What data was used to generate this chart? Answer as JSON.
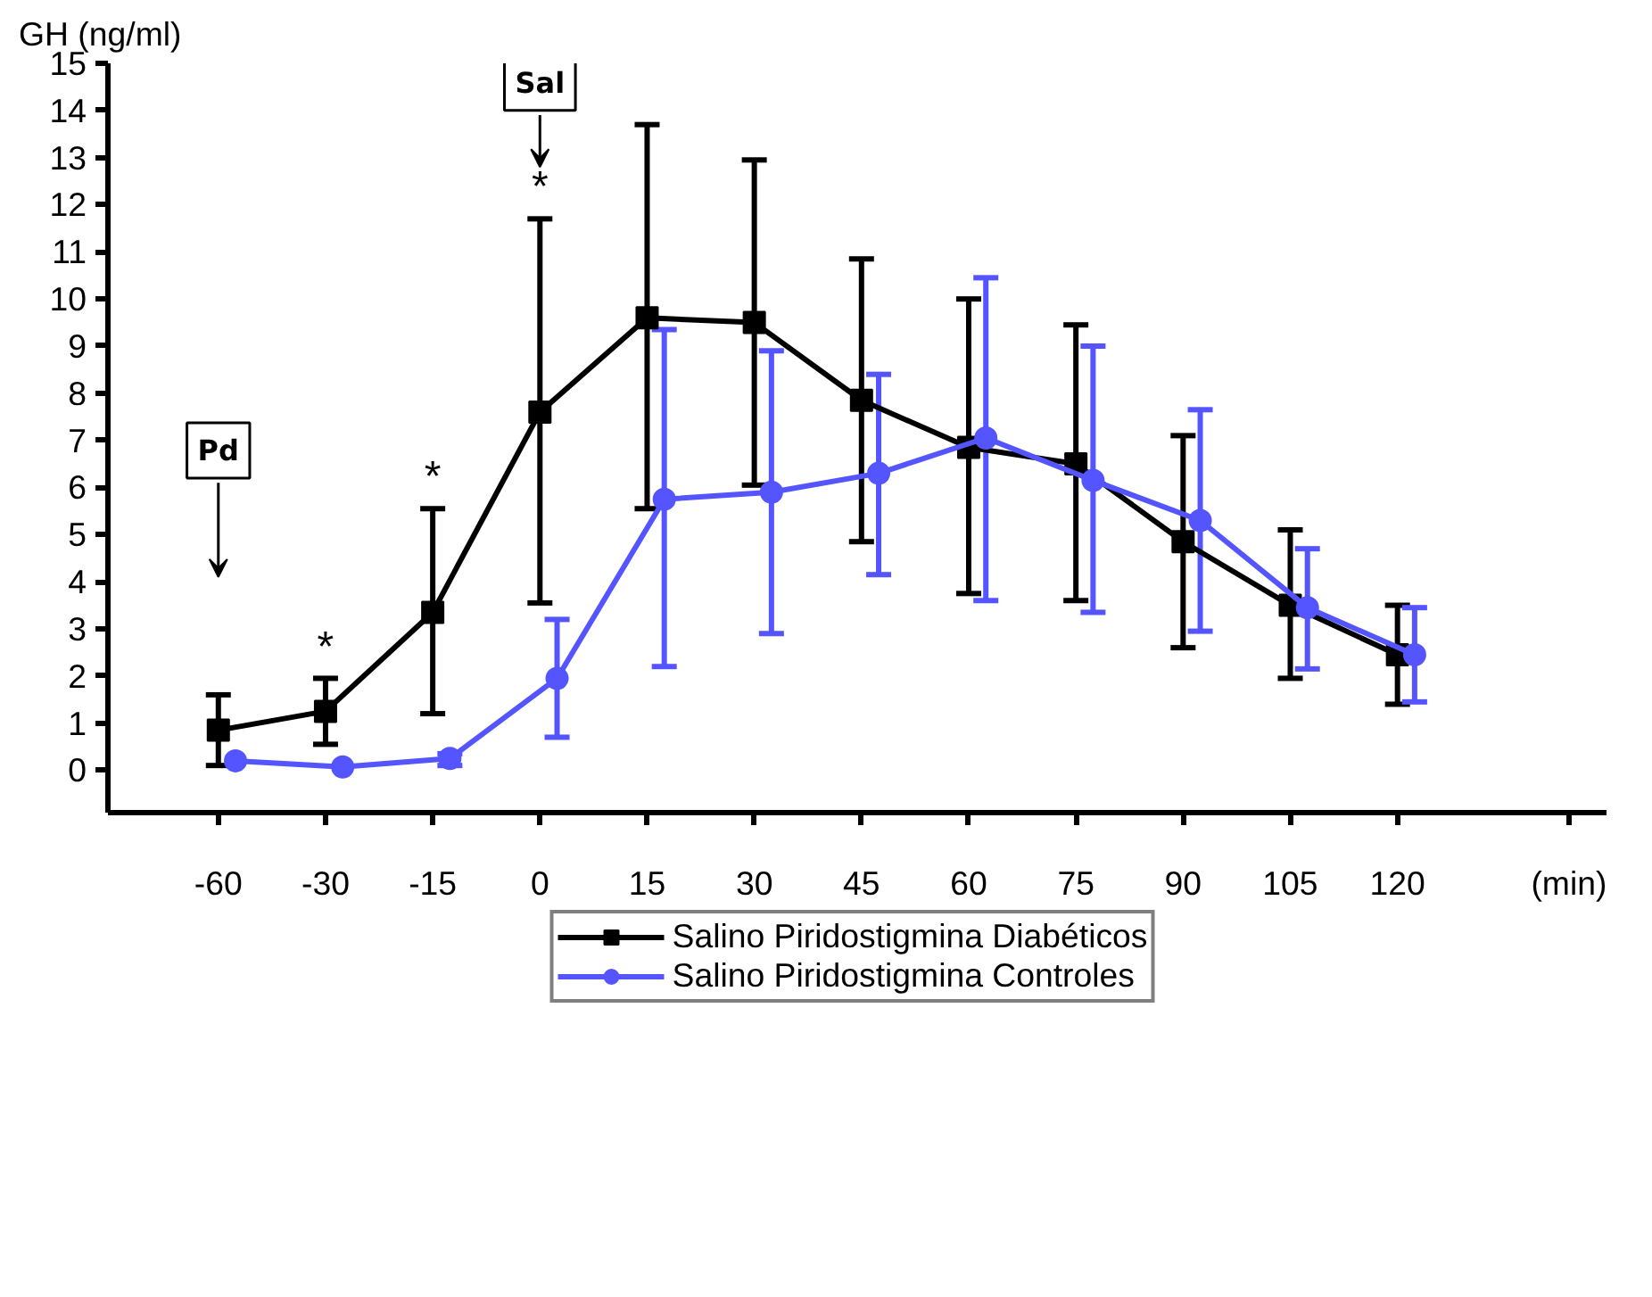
{
  "chart_data": {
    "type": "line",
    "ylabel": "GH (ng/ml)",
    "xlabel": "(min)",
    "categories": [
      "-60",
      "-30",
      "-15",
      "0",
      "15",
      "30",
      "45",
      "60",
      "75",
      "90",
      "105",
      "120"
    ],
    "ylim": [
      -0.9,
      15
    ],
    "yticks": [
      0,
      1,
      2,
      3,
      4,
      5,
      6,
      7,
      8,
      9,
      10,
      11,
      12,
      13,
      14,
      15
    ],
    "grid": false,
    "legend": "bottom",
    "series": [
      {
        "name": "Salino Piridostigmina Diabéticos",
        "color": "#000000",
        "marker": "square",
        "values": [
          0.85,
          1.25,
          3.35,
          7.6,
          9.6,
          9.5,
          7.85,
          6.85,
          6.5,
          4.85,
          3.5,
          2.45
        ],
        "errors": [
          [
            0.1,
            1.6
          ],
          [
            0.55,
            1.95
          ],
          [
            1.2,
            5.55
          ],
          [
            3.55,
            11.7
          ],
          [
            5.55,
            13.7
          ],
          [
            6.05,
            12.95
          ],
          [
            4.85,
            10.85
          ],
          [
            3.75,
            10.0
          ],
          [
            3.6,
            9.45
          ],
          [
            2.6,
            7.1
          ],
          [
            1.95,
            5.1
          ],
          [
            1.4,
            3.5
          ]
        ]
      },
      {
        "name": "Salino Piridostigmina Controles",
        "color": "#5555ff",
        "marker": "circle",
        "values": [
          0.2,
          0.07,
          0.25,
          1.95,
          5.75,
          5.9,
          6.3,
          7.05,
          6.15,
          5.3,
          3.45,
          2.45
        ],
        "errors": [
          null,
          null,
          [
            0.1,
            0.35
          ],
          [
            0.7,
            3.2
          ],
          [
            2.2,
            9.35
          ],
          [
            2.9,
            8.9
          ],
          [
            4.15,
            8.4
          ],
          [
            3.6,
            10.45
          ],
          [
            3.35,
            9.0
          ],
          [
            2.95,
            7.65
          ],
          [
            2.15,
            4.7
          ],
          [
            1.45,
            3.45
          ]
        ]
      }
    ],
    "annotations": [
      "Pd",
      "Sal",
      {
        "text": "*",
        "x": "-30",
        "y": 2.1
      },
      {
        "text": "*",
        "x": "-15",
        "y": 5.7
      },
      {
        "text": "*",
        "x": "0",
        "y": 11.85
      }
    ]
  }
}
